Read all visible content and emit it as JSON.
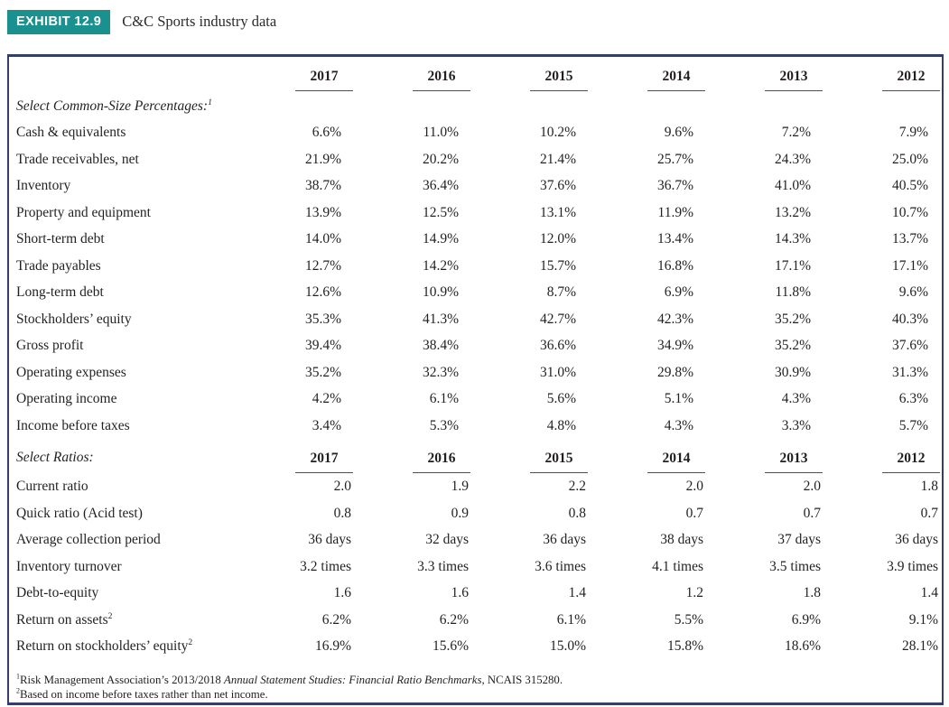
{
  "exhibit": {
    "badge": "EXHIBIT 12.9",
    "title": "C&C Sports industry data"
  },
  "colors": {
    "accent_teal": "#1B918F",
    "border_navy": "#333E6B"
  },
  "table": {
    "years": [
      "2017",
      "2016",
      "2015",
      "2014",
      "2013",
      "2012"
    ],
    "sections": [
      {
        "label": "Select Common-Size Percentages:",
        "superscript": "1",
        "rows": [
          {
            "label": "Cash & equivalents",
            "superscript": "",
            "values": [
              "6.6%",
              "11.0%",
              "10.2%",
              "9.6%",
              "7.2%",
              "7.9%"
            ]
          },
          {
            "label": "Trade receivables, net",
            "superscript": "",
            "values": [
              "21.9%",
              "20.2%",
              "21.4%",
              "25.7%",
              "24.3%",
              "25.0%"
            ]
          },
          {
            "label": "Inventory",
            "superscript": "",
            "values": [
              "38.7%",
              "36.4%",
              "37.6%",
              "36.7%",
              "41.0%",
              "40.5%"
            ]
          },
          {
            "label": "Property and equipment",
            "superscript": "",
            "values": [
              "13.9%",
              "12.5%",
              "13.1%",
              "11.9%",
              "13.2%",
              "10.7%"
            ]
          },
          {
            "label": "Short-term debt",
            "superscript": "",
            "values": [
              "14.0%",
              "14.9%",
              "12.0%",
              "13.4%",
              "14.3%",
              "13.7%"
            ]
          },
          {
            "label": "Trade payables",
            "superscript": "",
            "values": [
              "12.7%",
              "14.2%",
              "15.7%",
              "16.8%",
              "17.1%",
              "17.1%"
            ]
          },
          {
            "label": "Long-term debt",
            "superscript": "",
            "values": [
              "12.6%",
              "10.9%",
              "8.7%",
              "6.9%",
              "11.8%",
              "9.6%"
            ]
          },
          {
            "label": "Stockholders’ equity",
            "superscript": "",
            "values": [
              "35.3%",
              "41.3%",
              "42.7%",
              "42.3%",
              "35.2%",
              "40.3%"
            ]
          },
          {
            "label": "Gross profit",
            "superscript": "",
            "values": [
              "39.4%",
              "38.4%",
              "36.6%",
              "34.9%",
              "35.2%",
              "37.6%"
            ]
          },
          {
            "label": "Operating expenses",
            "superscript": "",
            "values": [
              "35.2%",
              "32.3%",
              "31.0%",
              "29.8%",
              "30.9%",
              "31.3%"
            ]
          },
          {
            "label": "Operating income",
            "superscript": "",
            "values": [
              "4.2%",
              "6.1%",
              "5.6%",
              "5.1%",
              "4.3%",
              "6.3%"
            ]
          },
          {
            "label": "Income before taxes",
            "superscript": "",
            "values": [
              "3.4%",
              "5.3%",
              "4.8%",
              "4.3%",
              "3.3%",
              "5.7%"
            ]
          }
        ]
      },
      {
        "label": "Select Ratios:",
        "superscript": "",
        "rows": [
          {
            "label": "Current ratio",
            "superscript": "",
            "values": [
              "2.0",
              "1.9",
              "2.2",
              "2.0",
              "2.0",
              "1.8"
            ]
          },
          {
            "label": "Quick ratio (Acid test)",
            "superscript": "",
            "values": [
              "0.8",
              "0.9",
              "0.8",
              "0.7",
              "0.7",
              "0.7"
            ]
          },
          {
            "label": "Average collection period",
            "superscript": "",
            "values": [
              "36 days",
              "32 days",
              "36 days",
              "38 days",
              "37 days",
              "36 days"
            ]
          },
          {
            "label": "Inventory turnover",
            "superscript": "",
            "values": [
              "3.2 times",
              "3.3 times",
              "3.6 times",
              "4.1 times",
              "3.5 times",
              "3.9 times"
            ]
          },
          {
            "label": "Debt-to-equity",
            "superscript": "",
            "values": [
              "1.6",
              "1.6",
              "1.4",
              "1.2",
              "1.8",
              "1.4"
            ]
          },
          {
            "label": "Return on assets",
            "superscript": "2",
            "values": [
              "6.2%",
              "6.2%",
              "6.1%",
              "5.5%",
              "6.9%",
              "9.1%"
            ]
          },
          {
            "label": "Return on stockholders’ equity",
            "superscript": "2",
            "values": [
              "16.9%",
              "15.6%",
              "15.0%",
              "15.8%",
              "18.6%",
              "28.1%"
            ]
          }
        ]
      }
    ]
  },
  "footnotes": [
    {
      "superscript": "1",
      "parts": [
        {
          "text": "Risk Management Association’s 2013/2018 ",
          "italic": false
        },
        {
          "text": "Annual Statement Studies: Financial Ratio Benchmarks",
          "italic": true
        },
        {
          "text": ", NCAIS 315280.",
          "italic": false
        }
      ]
    },
    {
      "superscript": "2",
      "parts": [
        {
          "text": "Based on income before taxes rather than net income.",
          "italic": false
        }
      ]
    }
  ]
}
